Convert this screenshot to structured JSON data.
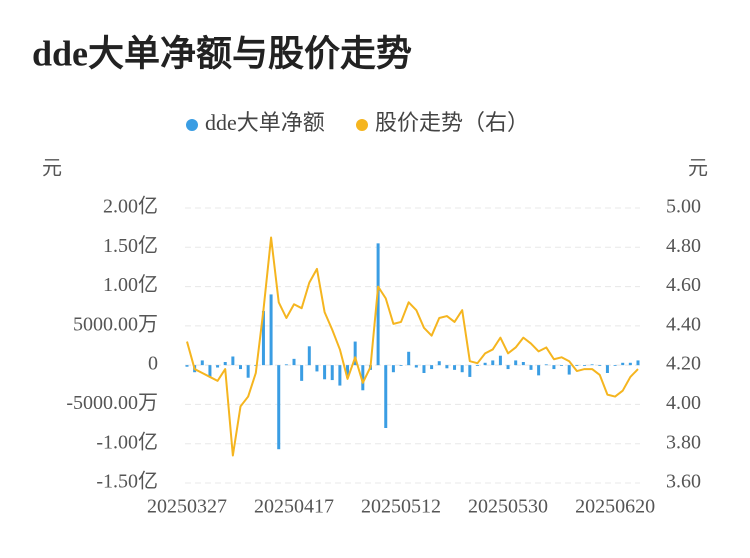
{
  "chart_data": {
    "type": "bar-line",
    "title": "dde大单净额与股价走势",
    "y_unit": "元",
    "y2_unit": "元",
    "categories": [
      "20250327",
      null,
      null,
      null,
      null,
      null,
      null,
      null,
      null,
      null,
      null,
      null,
      null,
      null,
      "20250417",
      null,
      null,
      null,
      null,
      null,
      null,
      null,
      null,
      null,
      null,
      null,
      null,
      null,
      "20250512",
      null,
      null,
      null,
      null,
      null,
      null,
      null,
      null,
      null,
      null,
      null,
      null,
      null,
      "20250530",
      null,
      null,
      null,
      null,
      null,
      null,
      null,
      null,
      null,
      null,
      null,
      null,
      null,
      "20250620",
      null,
      null,
      null
    ],
    "series": [
      {
        "name": "dde大单净额",
        "type": "bar",
        "color": "#3a9de3",
        "values": [
          -2000000,
          -9000000,
          6000000,
          -15000000,
          -3000000,
          4000000,
          11000000,
          -5000000,
          -16000000,
          -1000000,
          69000000,
          90000000,
          -107000000,
          1000000,
          8000000,
          -20000000,
          24000000,
          -8000000,
          -18000000,
          -19000000,
          -26000000,
          -16000000,
          30000000,
          -32000000,
          -6000000,
          155000000,
          -80000000,
          -9000000,
          -1000000,
          17000000,
          -3000000,
          -10000000,
          -5000000,
          5000000,
          -4000000,
          -6000000,
          -9000000,
          -15000000,
          -1000000,
          3000000,
          6000000,
          12000000,
          -5000000,
          6000000,
          4000000,
          -6000000,
          -13000000,
          1000000,
          -5000000,
          -1000000,
          -12000000,
          -1000000,
          -1000000,
          1000000,
          -1000000,
          -10000000,
          -1000000,
          3000000,
          3000000,
          6000000
        ]
      },
      {
        "name": "股价走势（右）",
        "type": "line",
        "axis": "y2",
        "color": "#f5b51f",
        "values": [
          4.32,
          4.18,
          4.16,
          4.14,
          4.12,
          4.18,
          3.74,
          3.99,
          4.04,
          4.16,
          4.48,
          4.85,
          4.52,
          4.44,
          4.51,
          4.49,
          4.62,
          4.69,
          4.47,
          4.38,
          4.28,
          4.13,
          4.24,
          4.11,
          4.19,
          4.6,
          4.54,
          4.41,
          4.42,
          4.52,
          4.48,
          4.39,
          4.35,
          4.44,
          4.45,
          4.42,
          4.48,
          4.22,
          4.21,
          4.26,
          4.28,
          4.34,
          4.26,
          4.29,
          4.34,
          4.31,
          4.27,
          4.29,
          4.23,
          4.24,
          4.22,
          4.17,
          4.18,
          4.18,
          4.15,
          4.05,
          4.04,
          4.07,
          4.14,
          4.18
        ]
      }
    ],
    "ylim": [
      -150000000,
      200000000
    ],
    "yticks": [
      {
        "value": -150000000,
        "label": "-1.50亿"
      },
      {
        "value": -100000000,
        "label": "-1.00亿"
      },
      {
        "value": -50000000,
        "label": "-5000.00万"
      },
      0,
      {
        "value": 50000000,
        "label": "5000.00万"
      },
      {
        "value": 100000000,
        "label": "1.00亿"
      },
      {
        "value": 150000000,
        "label": "1.50亿"
      },
      {
        "value": 200000000,
        "label": "2.00亿"
      }
    ],
    "y2lim": [
      3.6,
      5.0
    ],
    "y2ticks": [
      {
        "value": 3.6,
        "label": "3.60"
      },
      {
        "value": 3.8,
        "label": "3.80"
      },
      {
        "value": 4.0,
        "label": "4.00"
      },
      {
        "value": 4.2,
        "label": "4.20"
      },
      {
        "value": 4.4,
        "label": "4.40"
      },
      {
        "value": 4.6,
        "label": "4.60"
      },
      {
        "value": 4.8,
        "label": "4.80"
      },
      {
        "value": 5.0,
        "label": "5.00"
      }
    ],
    "grid": true,
    "legend": "top"
  }
}
